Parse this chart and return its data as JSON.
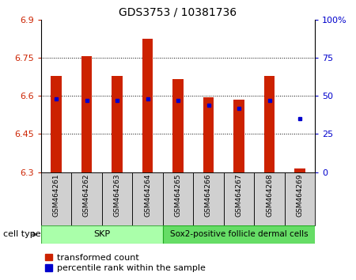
{
  "title": "GDS3753 / 10381736",
  "samples": [
    "GSM464261",
    "GSM464262",
    "GSM464263",
    "GSM464264",
    "GSM464265",
    "GSM464266",
    "GSM464267",
    "GSM464268",
    "GSM464269"
  ],
  "red_values": [
    6.68,
    6.755,
    6.68,
    6.825,
    6.665,
    6.595,
    6.585,
    6.68,
    6.315
  ],
  "blue_values": [
    48,
    47,
    47,
    48,
    47,
    44,
    42,
    47,
    35
  ],
  "ylim_left": [
    6.3,
    6.9
  ],
  "ylim_right": [
    0,
    100
  ],
  "yticks_left": [
    6.3,
    6.45,
    6.6,
    6.75,
    6.9
  ],
  "yticks_right": [
    0,
    25,
    50,
    75,
    100
  ],
  "ytick_labels_left": [
    "6.3",
    "6.45",
    "6.6",
    "6.75",
    "6.9"
  ],
  "ytick_labels_right": [
    "0",
    "25",
    "50",
    "75",
    "100%"
  ],
  "skp_count": 4,
  "sox2_count": 5,
  "cell_type_label": "cell type",
  "skp_label": "SKP",
  "sox2_label": "Sox2-positive follicle dermal cells",
  "skp_color": "#AAFFAA",
  "sox2_color": "#66DD66",
  "legend_red_label": "transformed count",
  "legend_blue_label": "percentile rank within the sample",
  "bar_bottom": 6.3,
  "bar_width": 0.35,
  "red_color": "#CC2200",
  "blue_color": "#0000CC",
  "sample_label_bg": "#D0D0D0",
  "tick_color_left": "#CC2200",
  "tick_color_right": "#0000CC"
}
